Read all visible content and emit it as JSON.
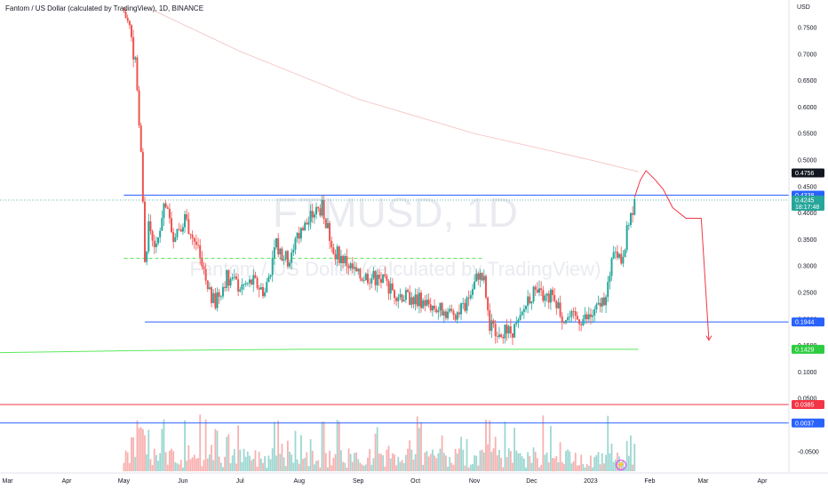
{
  "header": {
    "title": "Fantom / US Dollar (calculated by TradingView), 1D, BINANCE",
    "currency": "USD"
  },
  "watermark": {
    "symbol": "FTMUSD, 1D",
    "description": "Fantom / US Dollar (calculated by TradingView)"
  },
  "chart_data": {
    "type": "candlestick",
    "x_range": [
      "2022-02-25",
      "2023-04-15"
    ],
    "x_tick_labels": [
      "Mar",
      "Apr",
      "May",
      "Jun",
      "Jul",
      "Aug",
      "Sep",
      "Oct",
      "Nov",
      "Dec",
      "2023",
      "Feb",
      "Mar",
      "Apr"
    ],
    "y_range": [
      -0.085,
      0.8
    ],
    "y_tick_labels": [
      "0.7500",
      "0.7000",
      "0.6500",
      "0.6000",
      "0.5500",
      "0.5000",
      "0.4500",
      "0.4000",
      "0.3500",
      "0.3000",
      "0.2500",
      "0.2000",
      "0.1500",
      "0.1000",
      "0.0500",
      "0.0000",
      "-0.0500"
    ],
    "grid": false,
    "price_path": [
      {
        "date": "2022-05-01",
        "close": 0.78
      },
      {
        "date": "2022-05-04",
        "close": 0.75
      },
      {
        "date": "2022-05-07",
        "close": 0.68
      },
      {
        "date": "2022-05-10",
        "close": 0.52
      },
      {
        "date": "2022-05-12",
        "close": 0.3
      },
      {
        "date": "2022-05-14",
        "close": 0.38
      },
      {
        "date": "2022-05-18",
        "close": 0.33
      },
      {
        "date": "2022-05-22",
        "close": 0.42
      },
      {
        "date": "2022-05-27",
        "close": 0.36
      },
      {
        "date": "2022-06-02",
        "close": 0.39
      },
      {
        "date": "2022-06-08",
        "close": 0.34
      },
      {
        "date": "2022-06-14",
        "close": 0.25
      },
      {
        "date": "2022-06-18",
        "close": 0.23
      },
      {
        "date": "2022-06-24",
        "close": 0.28
      },
      {
        "date": "2022-07-01",
        "close": 0.26
      },
      {
        "date": "2022-07-08",
        "close": 0.27
      },
      {
        "date": "2022-07-14",
        "close": 0.25
      },
      {
        "date": "2022-07-20",
        "close": 0.34
      },
      {
        "date": "2022-07-26",
        "close": 0.31
      },
      {
        "date": "2022-08-01",
        "close": 0.36
      },
      {
        "date": "2022-08-09",
        "close": 0.4
      },
      {
        "date": "2022-08-13",
        "close": 0.41
      },
      {
        "date": "2022-08-19",
        "close": 0.33
      },
      {
        "date": "2022-08-25",
        "close": 0.31
      },
      {
        "date": "2022-09-01",
        "close": 0.28
      },
      {
        "date": "2022-09-08",
        "close": 0.28
      },
      {
        "date": "2022-09-14",
        "close": 0.27
      },
      {
        "date": "2022-09-20",
        "close": 0.25
      },
      {
        "date": "2022-09-27",
        "close": 0.24
      },
      {
        "date": "2022-10-04",
        "close": 0.235
      },
      {
        "date": "2022-10-12",
        "close": 0.22
      },
      {
        "date": "2022-10-20",
        "close": 0.21
      },
      {
        "date": "2022-10-27",
        "close": 0.22
      },
      {
        "date": "2022-11-03",
        "close": 0.285
      },
      {
        "date": "2022-11-06",
        "close": 0.27
      },
      {
        "date": "2022-11-09",
        "close": 0.185
      },
      {
        "date": "2022-11-14",
        "close": 0.18
      },
      {
        "date": "2022-11-20",
        "close": 0.175
      },
      {
        "date": "2022-11-25",
        "close": 0.195
      },
      {
        "date": "2022-11-29",
        "close": 0.24
      },
      {
        "date": "2022-12-03",
        "close": 0.25
      },
      {
        "date": "2022-12-08",
        "close": 0.24
      },
      {
        "date": "2022-12-13",
        "close": 0.245
      },
      {
        "date": "2022-12-17",
        "close": 0.205
      },
      {
        "date": "2022-12-23",
        "close": 0.2
      },
      {
        "date": "2022-12-30",
        "close": 0.2
      },
      {
        "date": "2023-01-03",
        "close": 0.21
      },
      {
        "date": "2023-01-08",
        "close": 0.24
      },
      {
        "date": "2023-01-11",
        "close": 0.28
      },
      {
        "date": "2023-01-14",
        "close": 0.34
      },
      {
        "date": "2023-01-17",
        "close": 0.31
      },
      {
        "date": "2023-01-21",
        "close": 0.38
      },
      {
        "date": "2023-01-24",
        "close": 0.4245
      }
    ],
    "price_badges": [
      {
        "label": "0.4756",
        "value": 0.4756,
        "color": "#131722"
      },
      {
        "label": "0.4338",
        "value": 0.4338,
        "color": "#2962ff"
      },
      {
        "label": "0.4245",
        "value": 0.4245,
        "sub": "18:17:48",
        "color": "#26a69a"
      },
      {
        "label": "0.1944",
        "value": 0.1944,
        "color": "#2962ff"
      },
      {
        "label": "0.1429",
        "value": 0.1429,
        "color": "#2ecc40"
      },
      {
        "label": "0.0385",
        "value": 0.0385,
        "color": "#f23645"
      },
      {
        "label": "0.0037",
        "value": 0.0037,
        "color": "#2962ff"
      }
    ],
    "horizontal_lines": [
      {
        "value": 0.4338,
        "color": "#2962ff",
        "from": "2022-05-01",
        "to": "right-edge"
      },
      {
        "value": 0.1944,
        "color": "#2962ff",
        "from": "2022-05-12",
        "to": "right-edge"
      },
      {
        "value": 0.0385,
        "color": "#f23645",
        "from": "left-edge",
        "to": "right-edge"
      },
      {
        "value": 0.0037,
        "color": "#2962ff",
        "from": "left-edge",
        "to": "right-edge"
      },
      {
        "value": 0.3146,
        "color": "#5de85d",
        "style": "dashed",
        "from": "2022-05-01",
        "to": "2022-11-05"
      }
    ],
    "moving_averages": [
      {
        "color": "#f7c8c8",
        "points": [
          [
            "2022-05-15",
            0.785
          ],
          [
            "2022-07-01",
            0.705
          ],
          [
            "2022-09-01",
            0.615
          ],
          [
            "2022-11-01",
            0.55
          ],
          [
            "2023-01-01",
            0.5
          ],
          [
            "2023-01-26",
            0.478
          ]
        ]
      },
      {
        "color": "#5de85d",
        "points": [
          [
            "2022-02-25",
            0.1365
          ],
          [
            "2022-05-01",
            0.14
          ],
          [
            "2022-08-01",
            0.1429
          ],
          [
            "2023-01-26",
            0.1429
          ]
        ]
      }
    ],
    "projection_path": [
      [
        "2023-01-24",
        0.43
      ],
      [
        "2023-01-27",
        0.462
      ],
      [
        "2023-01-30",
        0.48
      ],
      [
        "2023-02-04",
        0.462
      ],
      [
        "2023-02-08",
        0.445
      ],
      [
        "2023-02-13",
        0.41
      ],
      [
        "2023-02-20",
        0.39
      ],
      [
        "2023-02-28",
        0.39
      ],
      [
        "2023-03-04",
        0.16
      ]
    ]
  }
}
